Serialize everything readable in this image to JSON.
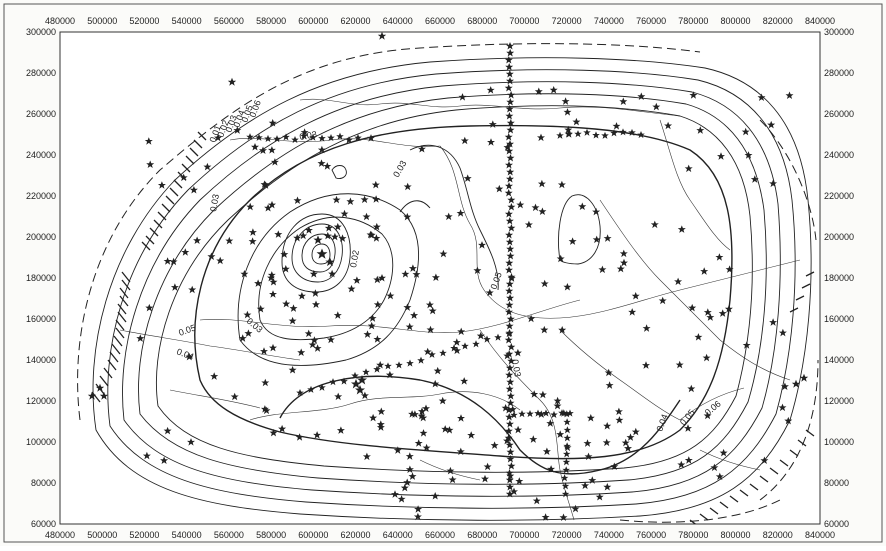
{
  "axes": {
    "x_ticks": [
      "480000",
      "500000",
      "520000",
      "540000",
      "560000",
      "580000",
      "600000",
      "620000",
      "640000",
      "660000",
      "680000",
      "700000",
      "720000",
      "740000",
      "760000",
      "780000",
      "800000",
      "820000",
      "840000"
    ],
    "y_ticks": [
      "300000",
      "280000",
      "260000",
      "240000",
      "220000",
      "200000",
      "180000",
      "160000",
      "140000",
      "120000",
      "100000",
      "80000",
      "60000"
    ],
    "x_range": [
      480000,
      840000
    ],
    "y_range": [
      60000,
      300000
    ]
  },
  "contour_labels": [
    {
      "text": "0.01",
      "id": "label-001-left"
    },
    {
      "text": "0.02",
      "id": "label-002-west-a"
    },
    {
      "text": "0.03",
      "id": "label-003-west-b"
    },
    {
      "text": "0.04",
      "id": "label-004-west-c"
    },
    {
      "text": "0.05",
      "id": "label-005-west-d"
    },
    {
      "text": "0.06",
      "id": "label-006-west-e"
    },
    {
      "text": "0.03",
      "id": "label-003-north"
    },
    {
      "text": "0.03",
      "id": "label-003-northeast"
    },
    {
      "text": "0.02",
      "id": "label-002-center"
    },
    {
      "text": "0.03",
      "id": "label-003-westmid"
    },
    {
      "text": "0.03",
      "id": "label-003-southwest"
    },
    {
      "text": "0.05",
      "id": "label-005-center"
    },
    {
      "text": "0.03",
      "id": "label-003-south"
    },
    {
      "text": "0.04",
      "id": "label-004-southeast"
    },
    {
      "text": "0.05",
      "id": "label-005-southeast"
    },
    {
      "text": "0.06",
      "id": "label-006-southeast"
    },
    {
      "text": "0.05",
      "id": "label-005-farwest"
    },
    {
      "text": "0.04",
      "id": "label-004-farwest"
    }
  ],
  "colors": {
    "ink": "#222222",
    "paper": "#fbfbf9",
    "frame": "#333333"
  },
  "symbols": {
    "station_marker": "star-icon"
  }
}
